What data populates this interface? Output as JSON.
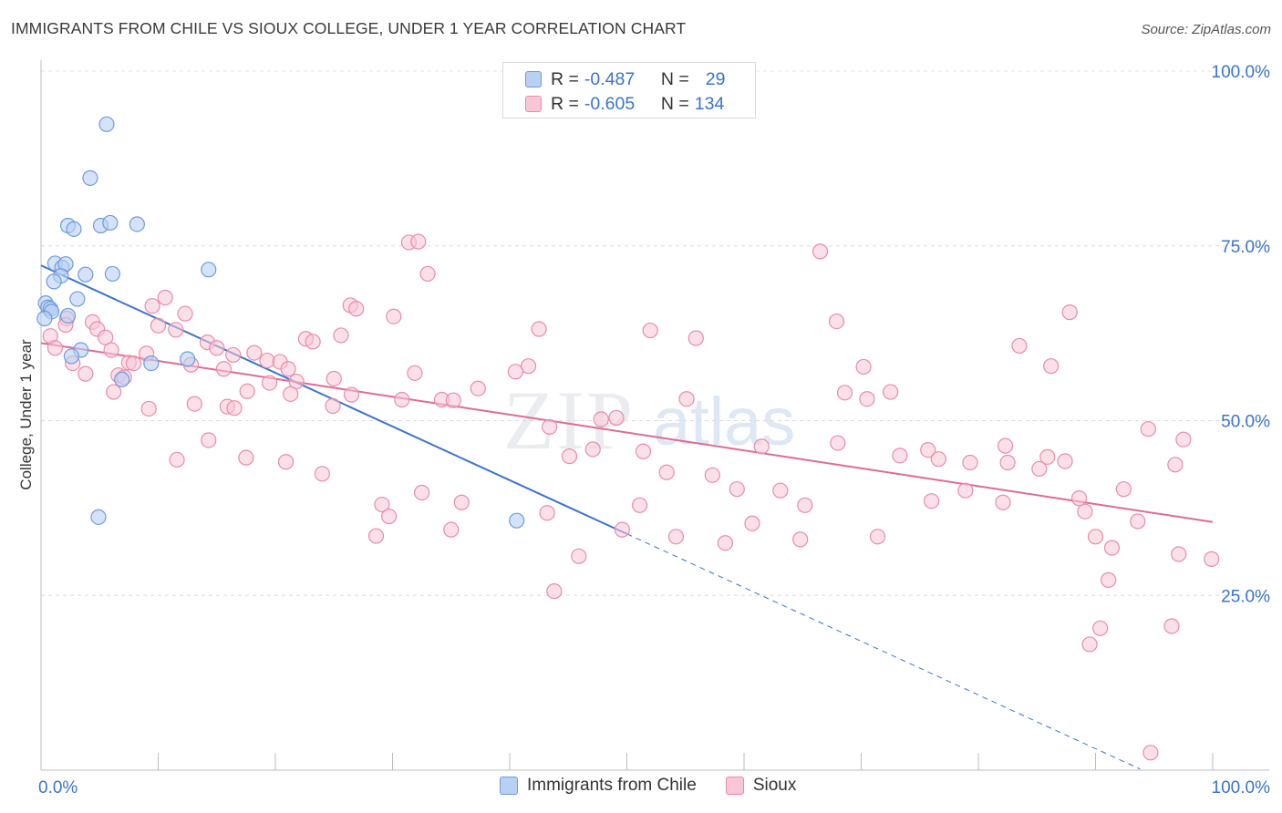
{
  "title": "IMMIGRANTS FROM CHILE VS SIOUX COLLEGE, UNDER 1 YEAR CORRELATION CHART",
  "source": "Source: ZipAtlas.com",
  "legend": {
    "r_label": "R =",
    "n_label": "N =",
    "series1": {
      "r": "-0.487",
      "n": "29"
    },
    "series2": {
      "r": "-0.605",
      "n": "134"
    }
  },
  "bottom_legend": {
    "series1": "Immigrants from Chile",
    "series2": "Sioux"
  },
  "colors": {
    "blue": "#6f9ae0",
    "blue_line": "#3a73cf",
    "pink": "#e98bab",
    "pink_line": "#e06a94",
    "tick": "#3a73cf"
  },
  "chart_data": {
    "type": "scatter",
    "title": "IMMIGRANTS FROM CHILE VS SIOUX COLLEGE, UNDER 1 YEAR CORRELATION CHART",
    "xlabel": "",
    "ylabel": "College, Under 1 year",
    "xlim": [
      0,
      100
    ],
    "ylim": [
      0,
      100
    ],
    "x_tick_labels": [
      "0.0%",
      "100.0%"
    ],
    "y_ticks": [
      25,
      50,
      75,
      100
    ],
    "y_tick_labels": [
      "25.0%",
      "50.0%",
      "75.0%",
      "100.0%"
    ],
    "grid": true,
    "legend_position": "top-center",
    "watermark": "ZIPatlas",
    "series": [
      {
        "name": "Immigrants from Chile",
        "color": "#6f9ae0",
        "trend": {
          "x0": 0,
          "y0": 72.2,
          "x1": 50.0,
          "y1": 33.8,
          "dashed_to_x": 93.8
        },
        "points": [
          [
            5.6,
            92.4
          ],
          [
            4.2,
            84.7
          ],
          [
            2.3,
            77.9
          ],
          [
            2.8,
            77.4
          ],
          [
            5.1,
            77.9
          ],
          [
            5.9,
            78.3
          ],
          [
            8.2,
            78.1
          ],
          [
            1.2,
            72.5
          ],
          [
            1.8,
            71.9
          ],
          [
            2.1,
            72.4
          ],
          [
            3.8,
            70.9
          ],
          [
            6.1,
            71.0
          ],
          [
            14.3,
            71.6
          ],
          [
            1.7,
            70.7
          ],
          [
            1.1,
            69.9
          ],
          [
            3.1,
            67.4
          ],
          [
            0.4,
            66.8
          ],
          [
            0.6,
            66.2
          ],
          [
            0.8,
            66.0
          ],
          [
            0.9,
            65.6
          ],
          [
            2.3,
            65.0
          ],
          [
            0.3,
            64.6
          ],
          [
            3.4,
            60.1
          ],
          [
            2.6,
            59.2
          ],
          [
            12.5,
            58.8
          ],
          [
            9.4,
            58.2
          ],
          [
            6.9,
            55.9
          ],
          [
            4.9,
            36.2
          ],
          [
            40.6,
            35.7
          ]
        ]
      },
      {
        "name": "Sioux",
        "color": "#e98bab",
        "trend": {
          "x0": 0,
          "y0": 61.1,
          "x1": 100,
          "y1": 35.5
        },
        "points": [
          [
            31.4,
            75.5
          ],
          [
            32.2,
            75.6
          ],
          [
            66.5,
            74.2
          ],
          [
            33.0,
            71.0
          ],
          [
            10.6,
            67.6
          ],
          [
            9.5,
            66.4
          ],
          [
            26.4,
            66.5
          ],
          [
            26.9,
            66.0
          ],
          [
            12.3,
            65.3
          ],
          [
            30.1,
            64.9
          ],
          [
            67.9,
            64.2
          ],
          [
            87.8,
            65.5
          ],
          [
            2.2,
            64.6
          ],
          [
            4.4,
            64.1
          ],
          [
            10.0,
            63.6
          ],
          [
            2.1,
            63.7
          ],
          [
            11.5,
            63.0
          ],
          [
            4.8,
            63.1
          ],
          [
            42.5,
            63.1
          ],
          [
            52.0,
            62.9
          ],
          [
            0.8,
            62.1
          ],
          [
            5.5,
            61.9
          ],
          [
            25.6,
            62.2
          ],
          [
            22.6,
            61.7
          ],
          [
            23.2,
            61.3
          ],
          [
            55.9,
            61.8
          ],
          [
            14.2,
            61.2
          ],
          [
            1.2,
            60.4
          ],
          [
            6.0,
            60.1
          ],
          [
            15.0,
            60.4
          ],
          [
            18.2,
            59.7
          ],
          [
            16.4,
            59.4
          ],
          [
            9.0,
            59.6
          ],
          [
            83.5,
            60.7
          ],
          [
            2.7,
            58.2
          ],
          [
            7.5,
            58.3
          ],
          [
            7.9,
            58.2
          ],
          [
            12.8,
            58.0
          ],
          [
            19.3,
            58.6
          ],
          [
            20.4,
            58.4
          ],
          [
            21.1,
            57.4
          ],
          [
            15.6,
            57.4
          ],
          [
            41.6,
            57.8
          ],
          [
            70.2,
            57.7
          ],
          [
            86.2,
            57.8
          ],
          [
            3.8,
            56.7
          ],
          [
            6.6,
            56.5
          ],
          [
            7.1,
            56.2
          ],
          [
            25.0,
            56.0
          ],
          [
            19.5,
            55.4
          ],
          [
            31.9,
            56.8
          ],
          [
            21.8,
            55.6
          ],
          [
            40.5,
            57.0
          ],
          [
            6.2,
            54.1
          ],
          [
            17.6,
            54.2
          ],
          [
            21.3,
            53.8
          ],
          [
            24.9,
            52.1
          ],
          [
            30.8,
            53.0
          ],
          [
            34.2,
            53.0
          ],
          [
            35.2,
            52.9
          ],
          [
            37.3,
            54.6
          ],
          [
            26.5,
            53.7
          ],
          [
            55.1,
            53.1
          ],
          [
            68.6,
            54.0
          ],
          [
            72.5,
            54.1
          ],
          [
            70.5,
            53.1
          ],
          [
            9.2,
            51.7
          ],
          [
            13.1,
            52.4
          ],
          [
            15.9,
            52.0
          ],
          [
            16.5,
            51.8
          ],
          [
            47.8,
            50.2
          ],
          [
            49.1,
            50.4
          ],
          [
            43.4,
            49.1
          ],
          [
            94.5,
            48.8
          ],
          [
            14.3,
            47.2
          ],
          [
            61.5,
            46.3
          ],
          [
            68.0,
            46.8
          ],
          [
            82.3,
            46.4
          ],
          [
            97.5,
            47.3
          ],
          [
            45.1,
            44.9
          ],
          [
            47.1,
            45.9
          ],
          [
            51.4,
            45.6
          ],
          [
            75.7,
            45.8
          ],
          [
            73.3,
            45.0
          ],
          [
            76.6,
            44.5
          ],
          [
            87.4,
            44.2
          ],
          [
            11.6,
            44.4
          ],
          [
            17.5,
            44.7
          ],
          [
            20.9,
            44.1
          ],
          [
            79.3,
            44.0
          ],
          [
            85.9,
            44.8
          ],
          [
            82.5,
            44.0
          ],
          [
            96.8,
            43.7
          ],
          [
            24.0,
            42.4
          ],
          [
            53.4,
            42.6
          ],
          [
            57.3,
            42.2
          ],
          [
            59.4,
            40.2
          ],
          [
            63.1,
            40.0
          ],
          [
            78.9,
            40.0
          ],
          [
            85.2,
            43.1
          ],
          [
            92.4,
            40.2
          ],
          [
            32.5,
            39.7
          ],
          [
            29.1,
            38.0
          ],
          [
            35.9,
            38.3
          ],
          [
            51.1,
            37.9
          ],
          [
            65.2,
            37.9
          ],
          [
            76.0,
            38.5
          ],
          [
            82.1,
            38.3
          ],
          [
            88.6,
            38.9
          ],
          [
            89.1,
            37.0
          ],
          [
            43.2,
            36.8
          ],
          [
            60.7,
            35.3
          ],
          [
            35.0,
            34.4
          ],
          [
            49.6,
            34.4
          ],
          [
            54.2,
            33.4
          ],
          [
            58.4,
            32.5
          ],
          [
            64.8,
            33.0
          ],
          [
            71.4,
            33.4
          ],
          [
            28.6,
            33.5
          ],
          [
            90.0,
            33.4
          ],
          [
            93.6,
            35.6
          ],
          [
            91.4,
            31.8
          ],
          [
            45.9,
            30.6
          ],
          [
            99.9,
            30.2
          ],
          [
            97.1,
            30.9
          ],
          [
            91.1,
            27.2
          ],
          [
            43.8,
            25.6
          ],
          [
            90.4,
            20.3
          ],
          [
            96.5,
            20.6
          ],
          [
            89.5,
            18.0
          ],
          [
            94.7,
            2.5
          ],
          [
            29.7,
            36.3
          ]
        ]
      }
    ]
  }
}
